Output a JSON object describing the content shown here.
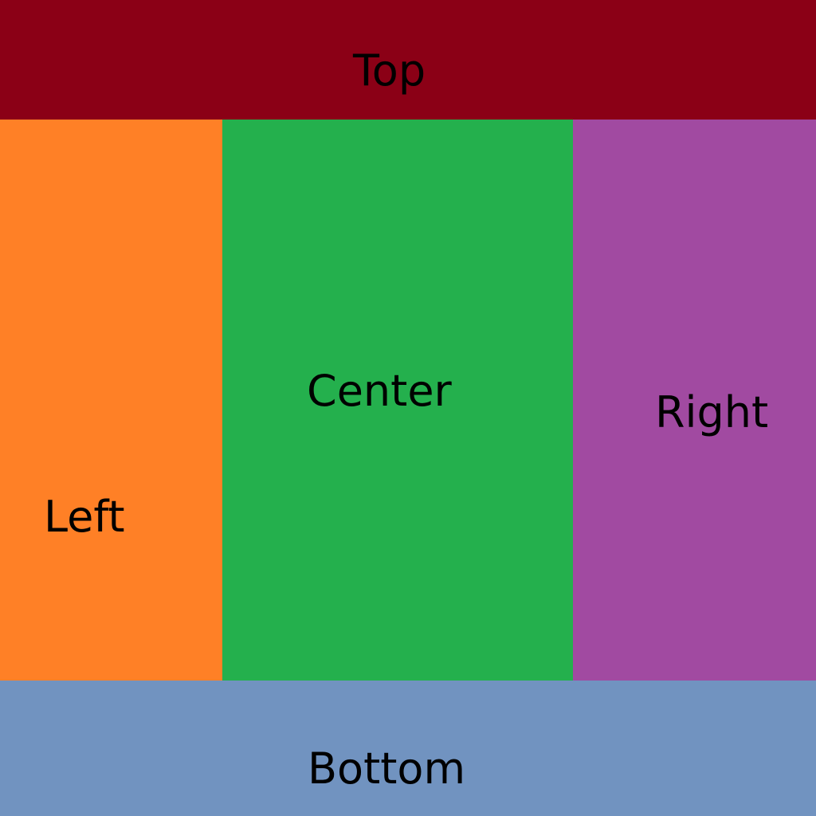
{
  "regions": {
    "top": {
      "label": "Top",
      "color": "#8b0016"
    },
    "left": {
      "label": "Left",
      "color": "#ff8026"
    },
    "center": {
      "label": "Center",
      "color": "#24b04d"
    },
    "right": {
      "label": "Right",
      "color": "#a14aa1"
    },
    "bottom": {
      "label": "Bottom",
      "color": "#7193c0"
    }
  }
}
